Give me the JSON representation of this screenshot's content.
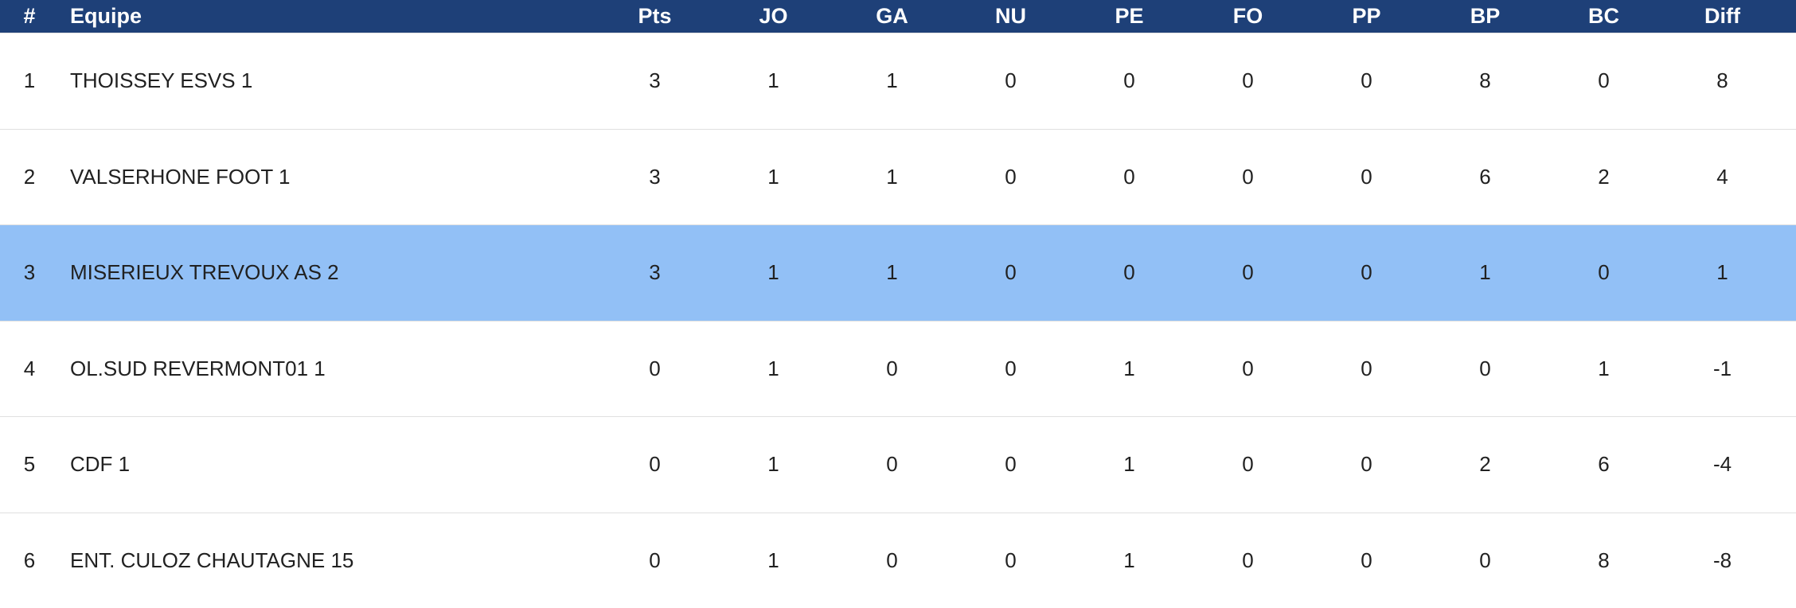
{
  "table": {
    "columns": [
      {
        "key": "rank",
        "label": "#"
      },
      {
        "key": "equipe",
        "label": "Equipe"
      },
      {
        "key": "pts",
        "label": "Pts"
      },
      {
        "key": "jo",
        "label": "JO"
      },
      {
        "key": "ga",
        "label": "GA"
      },
      {
        "key": "nu",
        "label": "NU"
      },
      {
        "key": "pe",
        "label": "PE"
      },
      {
        "key": "fo",
        "label": "FO"
      },
      {
        "key": "pp",
        "label": "PP"
      },
      {
        "key": "bp",
        "label": "BP"
      },
      {
        "key": "bc",
        "label": "BC"
      },
      {
        "key": "diff",
        "label": "Diff"
      }
    ],
    "rows": [
      {
        "rank": "1",
        "equipe": "THOISSEY ESVS 1",
        "values": [
          "3",
          "1",
          "1",
          "0",
          "0",
          "0",
          "0",
          "8",
          "0",
          "8"
        ],
        "highlighted": false
      },
      {
        "rank": "2",
        "equipe": "VALSERHONE FOOT 1",
        "values": [
          "3",
          "1",
          "1",
          "0",
          "0",
          "0",
          "0",
          "6",
          "2",
          "4"
        ],
        "highlighted": false
      },
      {
        "rank": "3",
        "equipe": "MISERIEUX TREVOUX AS 2",
        "values": [
          "3",
          "1",
          "1",
          "0",
          "0",
          "0",
          "0",
          "1",
          "0",
          "1"
        ],
        "highlighted": true
      },
      {
        "rank": "4",
        "equipe": "OL.SUD REVERMONT01 1",
        "values": [
          "0",
          "1",
          "0",
          "0",
          "1",
          "0",
          "0",
          "0",
          "1",
          "-1"
        ],
        "highlighted": false
      },
      {
        "rank": "5",
        "equipe": "CDF 1",
        "values": [
          "0",
          "1",
          "0",
          "0",
          "1",
          "0",
          "0",
          "2",
          "6",
          "-4"
        ],
        "highlighted": false
      },
      {
        "rank": "6",
        "equipe": "ENT. CULOZ CHAUTAGNE 15",
        "values": [
          "0",
          "1",
          "0",
          "0",
          "1",
          "0",
          "0",
          "0",
          "8",
          "-8"
        ],
        "highlighted": false
      }
    ],
    "colors": {
      "header_bg": "#1e4078",
      "header_text": "#ffffff",
      "highlight_bg": "#92c0f6",
      "row_text": "#212121",
      "divider": "#e0e0e0"
    }
  }
}
